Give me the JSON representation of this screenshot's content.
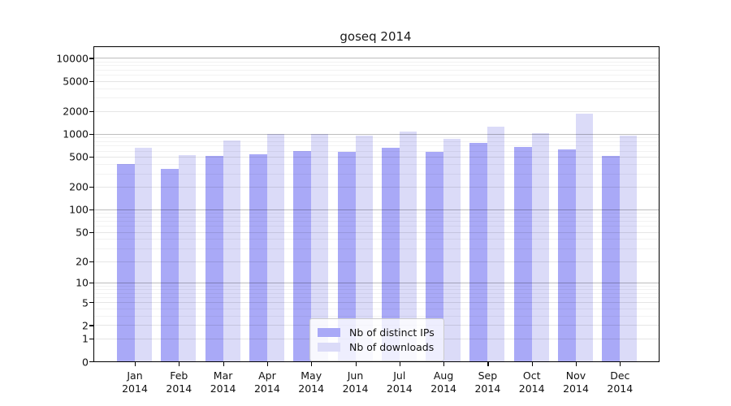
{
  "title": "goseq 2014",
  "chart_data": {
    "type": "bar",
    "title": "goseq 2014",
    "categories": [
      "Jan 2014",
      "Feb 2014",
      "Mar 2014",
      "Apr 2014",
      "May 2014",
      "Jun 2014",
      "Jul 2014",
      "Aug 2014",
      "Sep 2014",
      "Oct 2014",
      "Nov 2014",
      "Dec 2014"
    ],
    "x_tick_months": [
      "Jan",
      "Feb",
      "Mar",
      "Apr",
      "May",
      "Jun",
      "Jul",
      "Aug",
      "Sep",
      "Oct",
      "Nov",
      "Dec"
    ],
    "x_tick_year": "2014",
    "series": [
      {
        "name": "Nb of distinct IPs",
        "color": "#a9a9f7",
        "values": [
          400,
          340,
          505,
          535,
          590,
          585,
          650,
          585,
          765,
          675,
          620,
          505
        ]
      },
      {
        "name": "Nb of downloads",
        "color": "#dbdbf8",
        "values": [
          650,
          530,
          810,
          995,
          995,
          940,
          1080,
          865,
          1230,
          1010,
          1850,
          940
        ]
      }
    ],
    "yscale": "log1p",
    "ylim": [
      0,
      14000
    ],
    "yticks": [
      0,
      1,
      2,
      5,
      10,
      20,
      50,
      100,
      200,
      500,
      1000,
      2000,
      5000,
      10000
    ],
    "grid": true,
    "legend_position": "inside-bottom-center"
  },
  "legend": {
    "items": [
      {
        "label": "Nb of distinct IPs"
      },
      {
        "label": "Nb of downloads"
      }
    ]
  },
  "colors": {
    "ips_bar": "#a9a9f7",
    "downloads_bar": "#dbdbf8",
    "axis": "#000000",
    "grid_power10": "rgba(0,0,0,0.26)",
    "grid_labeled": "rgba(0,0,0,0.10)",
    "grid_minor": "rgba(0,0,0,0.05)",
    "legend_border": "#cccccc"
  }
}
